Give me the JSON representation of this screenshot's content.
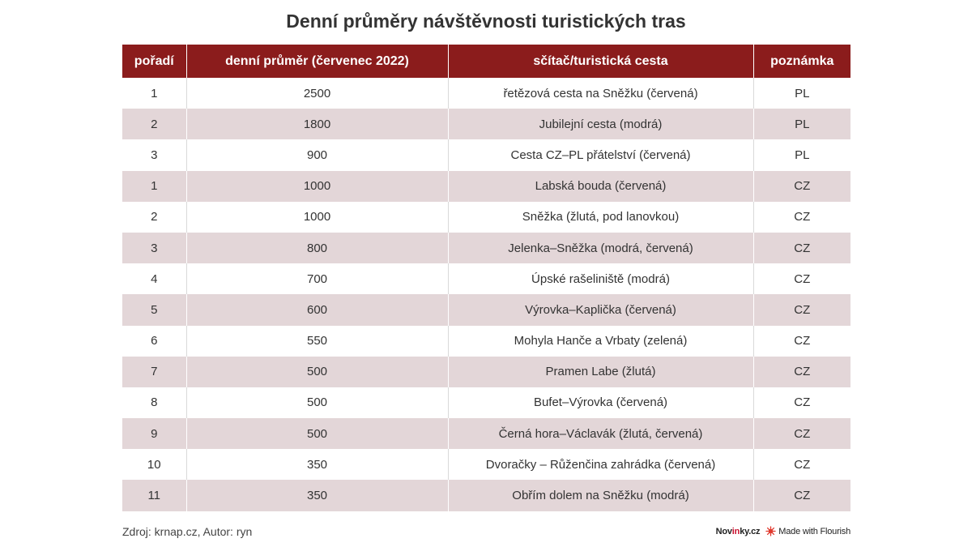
{
  "title": "Denní průměry návštěvnosti turistických tras",
  "chart_data": {
    "type": "table",
    "columns": [
      "pořadí",
      "denní průměr (červenec 2022)",
      "sčítač/turistická cesta",
      "poznámka"
    ],
    "rows": [
      [
        "1",
        "2500",
        "řetězová cesta na Sněžku (červená)",
        "PL"
      ],
      [
        "2",
        "1800",
        "Jubilejní cesta (modrá)",
        "PL"
      ],
      [
        "3",
        "900",
        "Cesta CZ–PL přátelství (červená)",
        "PL"
      ],
      [
        "1",
        "1000",
        "Labská bouda (červená)",
        "CZ"
      ],
      [
        "2",
        "1000",
        "Sněžka (žlutá, pod lanovkou)",
        "CZ"
      ],
      [
        "3",
        "800",
        "Jelenka–Sněžka (modrá, červená)",
        "CZ"
      ],
      [
        "4",
        "700",
        "Úpské rašeliniště (modrá)",
        "CZ"
      ],
      [
        "5",
        "600",
        "Výrovka–Kaplička (červená)",
        "CZ"
      ],
      [
        "6",
        "550",
        "Mohyla Hanče a Vrbaty (zelená)",
        "CZ"
      ],
      [
        "7",
        "500",
        "Pramen Labe (žlutá)",
        "CZ"
      ],
      [
        "8",
        "500",
        "Bufet–Výrovka (červená)",
        "CZ"
      ],
      [
        "9",
        "500",
        "Černá hora–Václavák (žlutá, červená)",
        "CZ"
      ],
      [
        "10",
        "350",
        "Dvoračky – Růženčina zahrádka (červená)",
        "CZ"
      ],
      [
        "11",
        "350",
        "Obřím dolem na Sněžku (modrá)",
        "CZ"
      ]
    ],
    "header_color": "#8b1c1c",
    "stripe_color": "#e3d6d8"
  },
  "footer": {
    "source": "Zdroj: krnap.cz, Autor: ryn",
    "brand_pre": "Nov",
    "brand_accent": "in",
    "brand_post": "ky.cz",
    "flourish": "Made with Flourish"
  }
}
